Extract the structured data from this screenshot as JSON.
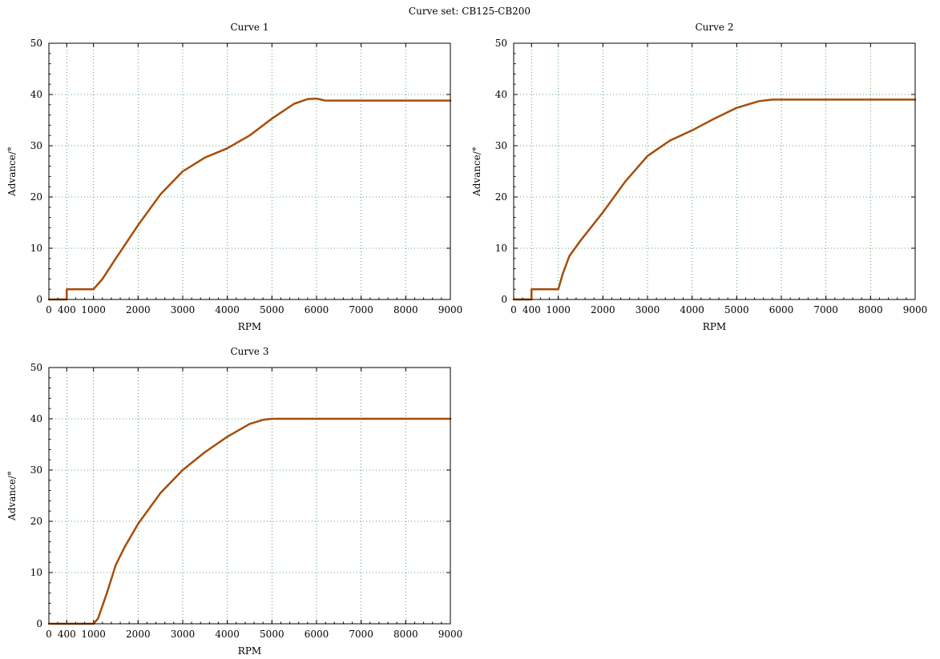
{
  "suptitle": "Curve set: CB125-CB200",
  "colors": {
    "curve": "#a64d0a",
    "grid": "#2e8b3a",
    "frame": "#000000"
  },
  "chart_data": [
    {
      "type": "line",
      "title": "Curve 1",
      "xlabel": "RPM",
      "ylabel": "Advance/°",
      "xlim": [
        0,
        9000
      ],
      "ylim": [
        0,
        50
      ],
      "xticks": [
        0,
        400,
        1000,
        2000,
        3000,
        4000,
        5000,
        6000,
        7000,
        8000,
        9000
      ],
      "yticks": [
        0,
        10,
        20,
        30,
        40,
        50
      ],
      "grid": true,
      "series": [
        {
          "x": [
            0,
            400,
            400,
            1000,
            1200,
            1500,
            2000,
            2500,
            3000,
            3500,
            4000,
            4500,
            5000,
            5500,
            5800,
            6000,
            6100,
            6200,
            7000,
            8000,
            9000
          ],
          "y": [
            0,
            0,
            2,
            2,
            4,
            8,
            14.5,
            20.5,
            25,
            27.7,
            29.5,
            32,
            35.3,
            38.2,
            39.1,
            39.2,
            39,
            38.8,
            38.8,
            38.8,
            38.8
          ]
        }
      ]
    },
    {
      "type": "line",
      "title": "Curve 2",
      "xlabel": "RPM",
      "ylabel": "Advance/°",
      "xlim": [
        0,
        9000
      ],
      "ylim": [
        0,
        50
      ],
      "xticks": [
        0,
        400,
        1000,
        2000,
        3000,
        4000,
        5000,
        6000,
        7000,
        8000,
        9000
      ],
      "yticks": [
        0,
        10,
        20,
        30,
        40,
        50
      ],
      "grid": true,
      "series": [
        {
          "x": [
            0,
            400,
            400,
            1000,
            1100,
            1250,
            1500,
            2000,
            2500,
            3000,
            3500,
            4000,
            4500,
            5000,
            5500,
            5800,
            6000,
            7000,
            8000,
            9000
          ],
          "y": [
            0,
            0,
            2,
            2,
            5,
            8.5,
            11.5,
            17,
            23,
            28,
            31,
            33,
            35.3,
            37.4,
            38.7,
            39,
            39,
            39,
            39,
            39
          ]
        }
      ]
    },
    {
      "type": "line",
      "title": "Curve 3",
      "xlabel": "RPM",
      "ylabel": "Advance/°",
      "xlim": [
        0,
        9000
      ],
      "ylim": [
        0,
        50
      ],
      "xticks": [
        0,
        400,
        1000,
        2000,
        3000,
        4000,
        5000,
        6000,
        7000,
        8000,
        9000
      ],
      "yticks": [
        0,
        10,
        20,
        30,
        40,
        50
      ],
      "grid": true,
      "series": [
        {
          "x": [
            0,
            1000,
            1100,
            1300,
            1500,
            1700,
            2000,
            2500,
            3000,
            3500,
            4000,
            4500,
            4800,
            5000,
            6000,
            7000,
            8000,
            9000
          ],
          "y": [
            0,
            0,
            1,
            6,
            11.5,
            15,
            19.5,
            25.5,
            30,
            33.5,
            36.5,
            39,
            39.8,
            40,
            40,
            40,
            40,
            40
          ]
        }
      ]
    }
  ]
}
